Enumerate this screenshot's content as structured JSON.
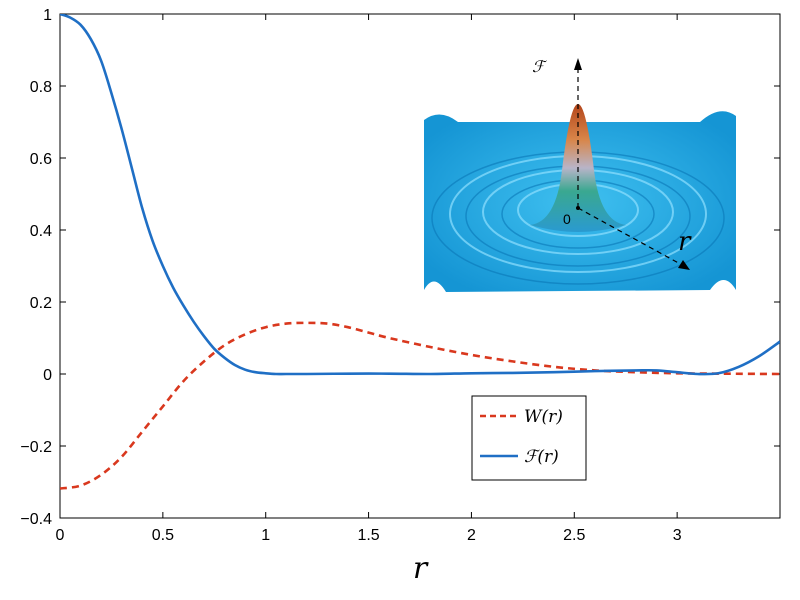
{
  "chart_data": {
    "type": "line",
    "xlabel": "r",
    "ylabel": "",
    "xlim": [
      0,
      3.5
    ],
    "ylim": [
      -0.4,
      1
    ],
    "grid": false,
    "legend_position": "lower-right",
    "x_ticks": [
      "0",
      "0.5",
      "1",
      "1.5",
      "2",
      "2.5",
      "3"
    ],
    "y_ticks": [
      "1",
      "0.8",
      "0.6",
      "0.4",
      "0.2",
      "0",
      "−0.2",
      "−0.4"
    ],
    "series": [
      {
        "name": "W(r)",
        "legend_label": "W(r)",
        "color": "#d9381e",
        "line_style": "dashed",
        "x": [
          0,
          0.1,
          0.2,
          0.3,
          0.4,
          0.5,
          0.6,
          0.7,
          0.8,
          0.9,
          1.0,
          1.1,
          1.2,
          1.3,
          1.4,
          1.5,
          1.6,
          1.8,
          2.0,
          2.2,
          2.4,
          2.6,
          2.8,
          3.0,
          3.2,
          3.5
        ],
        "y": [
          -0.318,
          -0.31,
          -0.28,
          -0.23,
          -0.16,
          -0.09,
          -0.02,
          0.035,
          0.08,
          0.11,
          0.13,
          0.14,
          0.142,
          0.14,
          0.13,
          0.115,
          0.1,
          0.075,
          0.053,
          0.035,
          0.02,
          0.01,
          0.005,
          0.002,
          0.001,
          0
        ]
      },
      {
        "name": "F(r)",
        "legend_label": "ℱ(r)",
        "color": "#1f6fc5",
        "line_style": "solid",
        "x": [
          0,
          0.05,
          0.1,
          0.15,
          0.2,
          0.25,
          0.3,
          0.35,
          0.4,
          0.45,
          0.5,
          0.55,
          0.6,
          0.65,
          0.7,
          0.75,
          0.8,
          0.85,
          0.9,
          0.95,
          1.0,
          1.05,
          1.1,
          1.2,
          1.4,
          1.6,
          1.8,
          2.0,
          2.2,
          2.4,
          2.6,
          2.8,
          2.9,
          3.0,
          3.1,
          3.2,
          3.3,
          3.4,
          3.5
        ],
        "y": [
          1.0,
          0.99,
          0.97,
          0.93,
          0.87,
          0.78,
          0.68,
          0.57,
          0.46,
          0.37,
          0.3,
          0.24,
          0.19,
          0.145,
          0.105,
          0.07,
          0.045,
          0.025,
          0.012,
          0.005,
          0.002,
          0.0,
          0.0,
          0.0,
          0.001,
          0.001,
          0.0,
          0.002,
          0.003,
          0.005,
          0.008,
          0.01,
          0.01,
          0.005,
          0.0,
          0.002,
          0.02,
          0.05,
          0.09
        ]
      }
    ]
  },
  "inset": {
    "vertical_axis_label": "ℱ",
    "origin_label": "0",
    "radial_axis_label": "r"
  },
  "colors": {
    "inset_surface": "#23a8e2",
    "peak_top": "#c8521c",
    "peak_mid": "#3aa890"
  }
}
